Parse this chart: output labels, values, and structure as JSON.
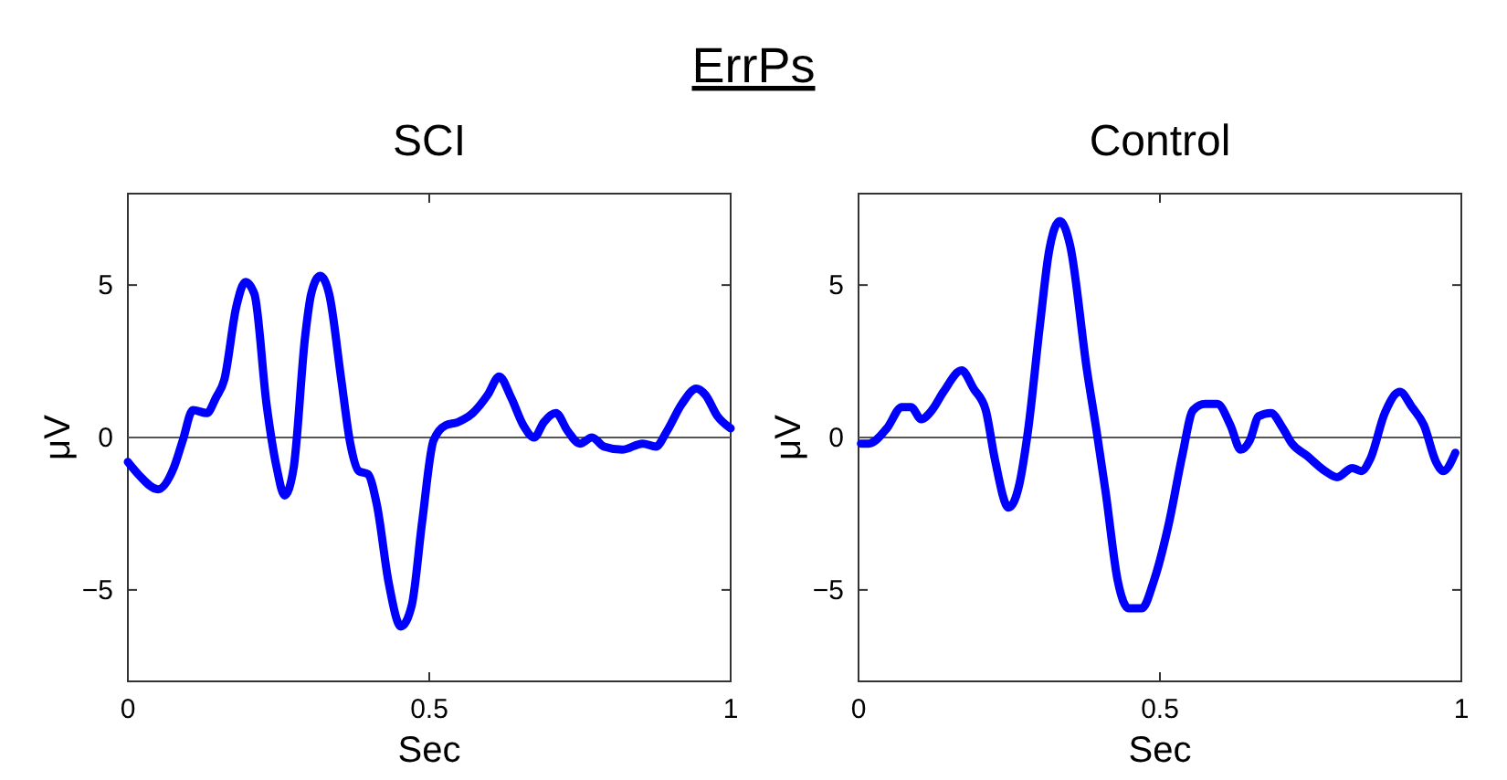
{
  "chart_data": [
    {
      "type": "other",
      "title": "ErrPs"
    },
    {
      "type": "line",
      "title": "SCI",
      "xlabel": "Sec",
      "ylabel": "μV",
      "xlim": [
        0,
        1
      ],
      "xticks": [
        0,
        0.5,
        1
      ],
      "ylim": [
        -8,
        8
      ],
      "yticks": [
        -5,
        0,
        5
      ],
      "line_style": "solid",
      "marker": "none",
      "ref_lines": [
        {
          "axis": "y",
          "value": 0,
          "color": "#555555"
        }
      ],
      "series": [
        {
          "color": "#0000ff",
          "x": [
            0,
            0.017,
            0.05,
            0.076,
            0.091,
            0.108,
            0.131,
            0.146,
            0.16,
            0.18,
            0.195,
            0.21,
            0.23,
            0.247,
            0.26,
            0.275,
            0.294,
            0.304,
            0.319,
            0.334,
            0.354,
            0.369,
            0.383,
            0.398,
            0.413,
            0.433,
            0.453,
            0.471,
            0.488,
            0.507,
            0.527,
            0.547,
            0.572,
            0.597,
            0.616,
            0.636,
            0.656,
            0.674,
            0.69,
            0.71,
            0.73,
            0.75,
            0.77,
            0.79,
            0.82,
            0.854,
            0.876,
            0.894,
            0.919,
            0.943,
            0.958,
            0.978,
            1
          ],
          "values": [
            -0.8,
            -1.2,
            -1.7,
            -1,
            -0.1,
            0.9,
            0.8,
            1.3,
            1.9,
            4.3,
            5.1,
            4.7,
            1.1,
            -1,
            -1.9,
            -1,
            3.3,
            4.7,
            5.3,
            4.7,
            1.9,
            -0.2,
            -1.1,
            -1.2,
            -2.2,
            -4.8,
            -6.2,
            -5.5,
            -2.8,
            -0.1,
            0.4,
            0.5,
            0.8,
            1.4,
            2,
            1.3,
            0.4,
            0,
            0.5,
            0.8,
            0.2,
            -0.2,
            0,
            -0.3,
            -0.4,
            -0.2,
            -0.3,
            0.2,
            1.1,
            1.6,
            1.4,
            0.7,
            0.3
          ]
        }
      ]
    },
    {
      "type": "line",
      "title": "Control",
      "xlabel": "Sec",
      "ylabel": "μV",
      "xlim": [
        0,
        1
      ],
      "xticks": [
        0,
        0.5,
        1
      ],
      "ylim": [
        -8,
        8
      ],
      "yticks": [
        -5,
        0,
        5
      ],
      "line_style": "solid",
      "marker": "none",
      "ref_lines": [
        {
          "axis": "y",
          "value": 0,
          "color": "#555555"
        }
      ],
      "series": [
        {
          "color": "#0000ff",
          "x": [
            0.004,
            0.017,
            0.047,
            0.072,
            0.087,
            0.104,
            0.122,
            0.141,
            0.171,
            0.191,
            0.211,
            0.226,
            0.249,
            0.266,
            0.281,
            0.301,
            0.316,
            0.334,
            0.351,
            0.379,
            0.395,
            0.41,
            0.43,
            0.448,
            0.47,
            0.49,
            0.515,
            0.537,
            0.555,
            0.575,
            0.595,
            0.617,
            0.634,
            0.649,
            0.664,
            0.684,
            0.704,
            0.719,
            0.744,
            0.774,
            0.794,
            0.819,
            0.834,
            0.849,
            0.873,
            0.898,
            0.918,
            0.938,
            0.958,
            0.97,
            0.99
          ],
          "values": [
            -0.2,
            -0.2,
            0.3,
            1,
            1,
            0.6,
            0.9,
            1.5,
            2.2,
            1.6,
            0.9,
            -0.7,
            -2.3,
            -1.6,
            0.2,
            3.7,
            6.1,
            7.1,
            6.3,
            2.2,
            0.2,
            -1.8,
            -4.7,
            -5.6,
            -5.6,
            -4.7,
            -2.8,
            -0.6,
            0.9,
            1.1,
            1.1,
            0.4,
            -0.4,
            -0.1,
            0.7,
            0.8,
            0.3,
            -0.2,
            -0.6,
            -1.1,
            -1.3,
            -1,
            -1.1,
            -0.7,
            0.8,
            1.5,
            1,
            0.4,
            -0.8,
            -1.1,
            -0.5
          ]
        }
      ]
    }
  ]
}
